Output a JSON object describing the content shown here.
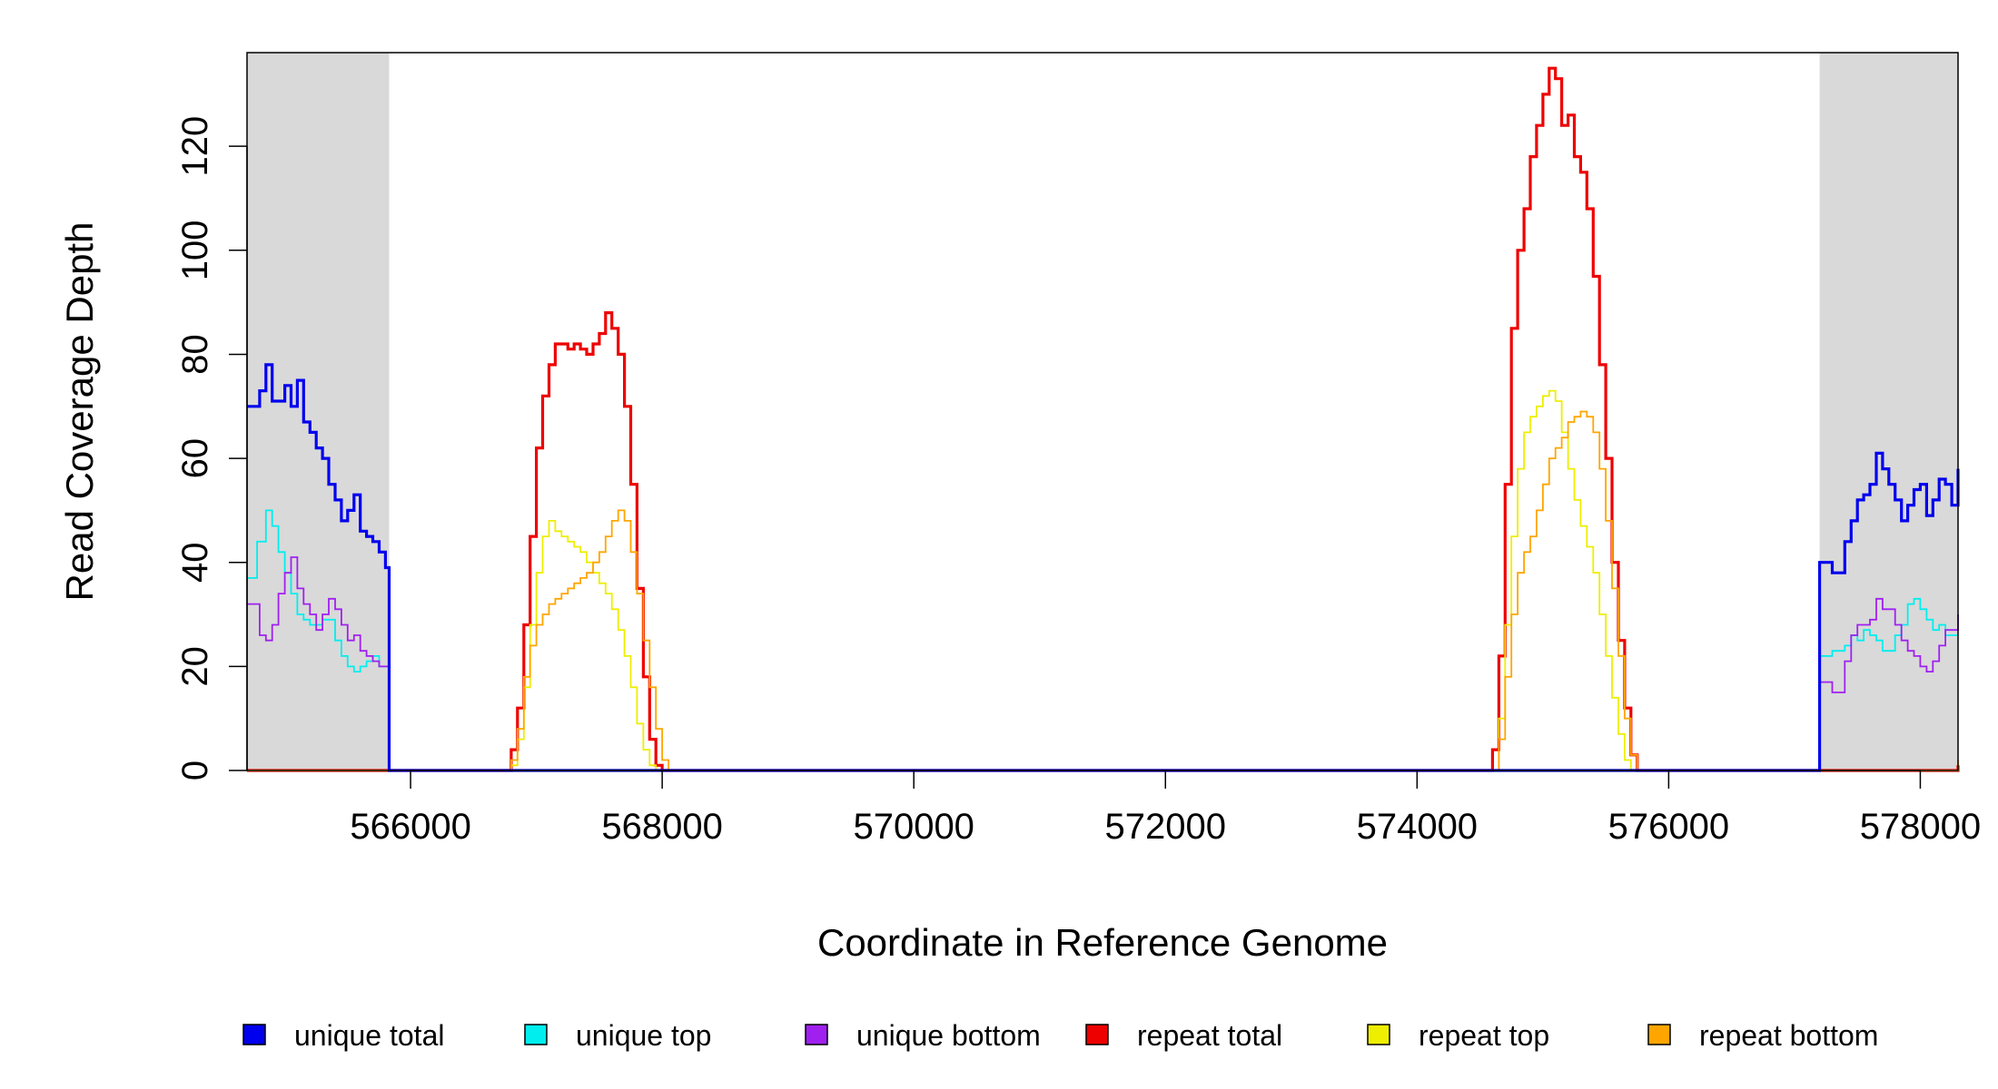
{
  "chart_data": {
    "type": "line",
    "title": "",
    "xlabel": "Coordinate in Reference Genome",
    "ylabel": "Read Coverage Depth",
    "xlim": [
      564700,
      578300
    ],
    "ylim": [
      0,
      138
    ],
    "xticks": [
      566000,
      568000,
      570000,
      572000,
      574000,
      576000,
      578000
    ],
    "xtick_labels": [
      "566000",
      "568000",
      "570000",
      "572000",
      "574000",
      "576000",
      "578000"
    ],
    "yticks": [
      0,
      20,
      40,
      60,
      80,
      100,
      120
    ],
    "ytick_labels": [
      "0",
      "20",
      "40",
      "60",
      "80",
      "100",
      "120"
    ],
    "grid": false,
    "legend_position": "bottom",
    "shaded_regions": [
      {
        "x0": 564700,
        "x1": 565830
      },
      {
        "x0": 577200,
        "x1": 578300
      }
    ],
    "series": [
      {
        "name": "unique total",
        "color": "#0000ee",
        "x": [
          564700,
          564800,
          564850,
          564900,
          565000,
          565050,
          565100,
          565150,
          565200,
          565250,
          565300,
          565350,
          565400,
          565450,
          565500,
          565550,
          565600,
          565650,
          565700,
          565750,
          565800,
          565830,
          565830,
          566000,
          577180,
          577200,
          577200,
          577300,
          577400,
          577450,
          577500,
          577550,
          577600,
          577650,
          577700,
          577750,
          577800,
          577850,
          577900,
          577950,
          578000,
          578050,
          578100,
          578150,
          578200,
          578250,
          578300
        ],
        "values": [
          70,
          73,
          78,
          71,
          74,
          70,
          75,
          67,
          65,
          62,
          60,
          55,
          52,
          48,
          50,
          53,
          46,
          45,
          44,
          42,
          39,
          39,
          0,
          0,
          0,
          0,
          40,
          38,
          44,
          48,
          52,
          53,
          55,
          61,
          58,
          55,
          52,
          48,
          51,
          54,
          55,
          49,
          52,
          56,
          55,
          51,
          58
        ]
      },
      {
        "name": "unique top",
        "color": "#00eeee",
        "x": [
          564700,
          564780,
          564850,
          564900,
          564950,
          565000,
          565050,
          565100,
          565150,
          565200,
          565300,
          565400,
          565450,
          565500,
          565550,
          565600,
          565650,
          565700,
          565750,
          565830,
          565830,
          577200,
          577200,
          577300,
          577400,
          577450,
          577500,
          577550,
          577600,
          577650,
          577700,
          577800,
          577850,
          577900,
          577950,
          578000,
          578050,
          578100,
          578150,
          578200,
          578300
        ],
        "values": [
          37,
          44,
          50,
          47,
          42,
          38,
          34,
          30,
          29,
          28,
          29,
          25,
          22,
          20,
          19,
          20,
          21,
          22,
          20,
          20,
          0,
          0,
          22,
          23,
          24,
          26,
          25,
          27,
          26,
          25,
          23,
          26,
          28,
          32,
          33,
          31,
          29,
          27,
          28,
          26,
          26
        ]
      },
      {
        "name": "unique bottom",
        "color": "#a020f0",
        "x": [
          564700,
          564800,
          564850,
          564900,
          564950,
          565000,
          565050,
          565100,
          565150,
          565200,
          565250,
          565300,
          565350,
          565400,
          565450,
          565500,
          565550,
          565600,
          565650,
          565700,
          565750,
          565830,
          565830,
          577200,
          577200,
          577300,
          577400,
          577450,
          577500,
          577550,
          577600,
          577650,
          577700,
          577800,
          577850,
          577900,
          577950,
          578000,
          578050,
          578100,
          578150,
          578200,
          578300
        ],
        "values": [
          32,
          26,
          25,
          28,
          34,
          38,
          41,
          35,
          32,
          30,
          27,
          30,
          33,
          31,
          28,
          25,
          26,
          23,
          22,
          21,
          20,
          19,
          0,
          0,
          17,
          15,
          21,
          26,
          28,
          28,
          29,
          33,
          31,
          28,
          25,
          23,
          22,
          20,
          19,
          21,
          24,
          27,
          30
        ]
      },
      {
        "name": "repeat total",
        "color": "#ee0000",
        "x": [
          564700,
          566780,
          566800,
          566850,
          566900,
          566950,
          567000,
          567050,
          567100,
          567150,
          567200,
          567250,
          567300,
          567350,
          567400,
          567450,
          567500,
          567550,
          567600,
          567650,
          567700,
          567750,
          567800,
          567850,
          567900,
          567950,
          568000,
          568050,
          574580,
          574600,
          574650,
          574700,
          574750,
          574800,
          574850,
          574900,
          574950,
          575000,
          575050,
          575100,
          575150,
          575200,
          575250,
          575300,
          575350,
          575400,
          575450,
          575500,
          575550,
          575600,
          575650,
          575700,
          575750,
          575800,
          575830,
          578280,
          578300
        ],
        "values": [
          0,
          0,
          4,
          12,
          28,
          45,
          62,
          72,
          78,
          82,
          82,
          81,
          82,
          81,
          80,
          82,
          84,
          88,
          85,
          80,
          70,
          55,
          35,
          18,
          6,
          1,
          0,
          0,
          0,
          4,
          22,
          55,
          85,
          100,
          108,
          118,
          124,
          130,
          135,
          133,
          124,
          126,
          118,
          115,
          108,
          95,
          78,
          60,
          40,
          25,
          12,
          3,
          0,
          0,
          0,
          0,
          1
        ]
      },
      {
        "name": "repeat top",
        "color": "#eeee00",
        "x": [
          564700,
          566800,
          566850,
          566900,
          566950,
          567000,
          567050,
          567100,
          567150,
          567200,
          567250,
          567300,
          567350,
          567400,
          567450,
          567500,
          567550,
          567600,
          567650,
          567700,
          567750,
          567800,
          567850,
          567900,
          567950,
          568000,
          574600,
          574650,
          574700,
          574750,
          574800,
          574850,
          574900,
          574950,
          575000,
          575050,
          575100,
          575150,
          575200,
          575250,
          575300,
          575350,
          575400,
          575450,
          575500,
          575550,
          575600,
          575650,
          575700,
          575750,
          575800,
          578300
        ],
        "values": [
          0,
          1,
          6,
          16,
          28,
          38,
          45,
          48,
          46,
          45,
          44,
          43,
          42,
          40,
          38,
          36,
          34,
          31,
          27,
          22,
          16,
          9,
          4,
          1,
          0,
          0,
          0,
          10,
          28,
          45,
          58,
          65,
          68,
          70,
          72,
          73,
          71,
          65,
          58,
          52,
          47,
          43,
          38,
          30,
          22,
          14,
          7,
          2,
          0,
          0,
          0,
          0
        ]
      },
      {
        "name": "repeat bottom",
        "color": "#ffa500",
        "x": [
          564700,
          566800,
          566850,
          566900,
          566950,
          567000,
          567050,
          567100,
          567150,
          567200,
          567250,
          567300,
          567350,
          567400,
          567450,
          567500,
          567550,
          567600,
          567650,
          567700,
          567750,
          567800,
          567850,
          567900,
          567950,
          568000,
          568050,
          574600,
          574650,
          574700,
          574750,
          574800,
          574850,
          574900,
          574950,
          575000,
          575050,
          575100,
          575150,
          575200,
          575250,
          575300,
          575350,
          575400,
          575450,
          575500,
          575550,
          575600,
          575650,
          575700,
          575750,
          575800,
          575850,
          578280,
          578300
        ],
        "values": [
          0,
          2,
          8,
          18,
          24,
          28,
          30,
          32,
          33,
          34,
          35,
          36,
          37,
          38,
          40,
          42,
          45,
          48,
          50,
          48,
          42,
          34,
          25,
          16,
          8,
          2,
          0,
          0,
          6,
          18,
          30,
          38,
          42,
          45,
          50,
          55,
          60,
          62,
          64,
          67,
          68,
          69,
          68,
          65,
          58,
          48,
          35,
          22,
          10,
          3,
          0,
          0,
          0,
          0,
          2
        ]
      }
    ]
  }
}
